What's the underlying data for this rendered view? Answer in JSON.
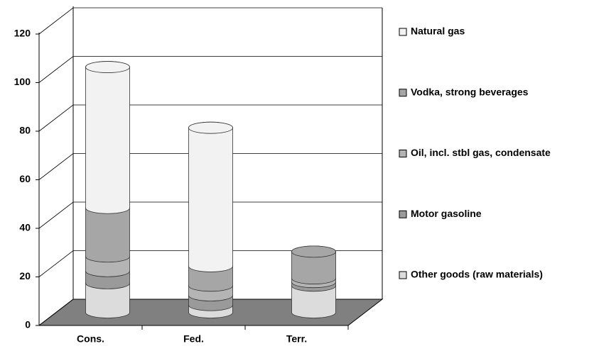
{
  "chart_data": {
    "type": "bar3d",
    "categories": [
      "Cons.",
      "Fed.",
      "Terr."
    ],
    "series": [
      {
        "name": "Other goods (raw materials)",
        "color": "#dcdcdc",
        "values": [
          12,
          3,
          11
        ]
      },
      {
        "name": "Motor gasoline",
        "color": "#9a9a9a",
        "values": [
          5,
          4,
          1.5
        ]
      },
      {
        "name": "Oil, incl. stbl gas, condensate",
        "color": "#b4b4b4",
        "values": [
          6,
          4,
          1.5
        ]
      },
      {
        "name": "Vodka, strong beverages",
        "color": "#a6a6a6",
        "values": [
          20,
          8,
          11
        ]
      },
      {
        "name": "Natural gas",
        "color": "#f2f2f2",
        "values": [
          58,
          57,
          0
        ]
      }
    ],
    "ylim": [
      0,
      120
    ],
    "yticks": [
      0,
      20,
      40,
      60,
      80,
      100,
      120
    ],
    "grid": true
  }
}
